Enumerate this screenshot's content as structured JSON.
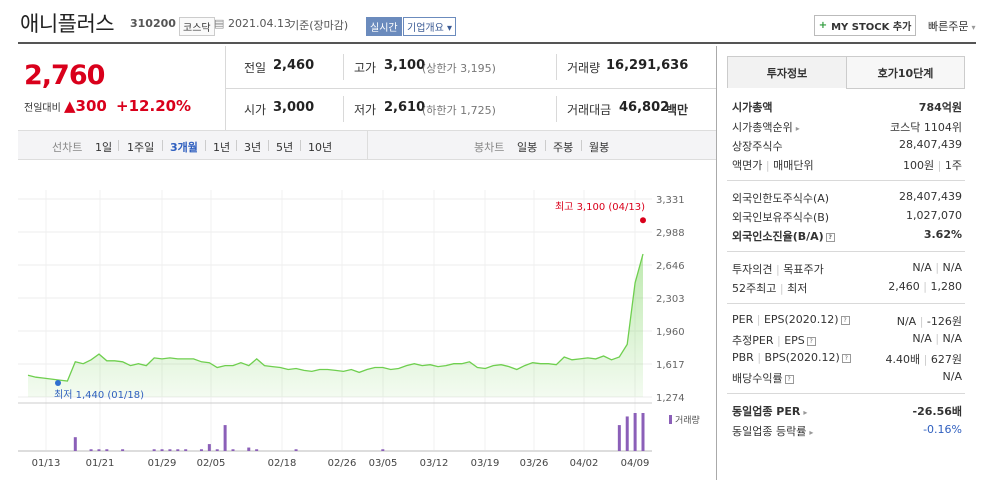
{
  "header": {
    "name": "애니플러스",
    "code": "310200",
    "market": "코스닥",
    "date": "2021.04.13",
    "basis": "기준(장마감)",
    "realtime": "실시간",
    "company": "기업개요",
    "mystock": "MY STOCK 추가",
    "quick": "빠른주문"
  },
  "price": {
    "current": "2,760",
    "change_label": "전일대비",
    "change": "300",
    "change_pct": "+12.20%"
  },
  "quote": {
    "prev_label": "전일",
    "prev": "2,460",
    "open_label": "시가",
    "open": "3,000",
    "high_label": "고가",
    "high": "3,100",
    "upper": "(상한가 3,195)",
    "low_label": "저가",
    "low": "2,610",
    "lower": "(하한가 1,725)",
    "volume_label": "거래량",
    "volume": "16,291,636",
    "amount_label": "거래대금",
    "amount": "46,802",
    "amount_unit": "백만"
  },
  "toolbar": {
    "line_chart": "선차트",
    "periods": [
      "1일",
      "1주일",
      "3개월",
      "1년",
      "3년",
      "5년",
      "10년"
    ],
    "active_period": "3개월",
    "candle_chart": "봉차트",
    "candles": [
      "일봉",
      "주봉",
      "월봉"
    ]
  },
  "chart_data": {
    "type": "line",
    "y_ticks": [
      "3,331",
      "2,988",
      "2,646",
      "2,303",
      "1,960",
      "1,617",
      "1,274"
    ],
    "ylim": [
      1274,
      3331
    ],
    "x_ticks": [
      "01/13",
      "01/21",
      "01/29",
      "02/05",
      "02/18",
      "02/26",
      "03/05",
      "03/12",
      "03/19",
      "03/26",
      "04/02",
      "04/09"
    ],
    "high_label": "최고 3,100 (04/13)",
    "low_label": "최저 1,440 (01/18)",
    "volume_legend": "거래량",
    "series": [
      {
        "values": [
          1500,
          1480,
          1470,
          1460,
          1450,
          1440,
          1640,
          1620,
          1660,
          1720,
          1650,
          1650,
          1640,
          1600,
          1620,
          1600,
          1680,
          1670,
          1680,
          1670,
          1670,
          1670,
          1640,
          1630,
          1580,
          1600,
          1600,
          1630,
          1600,
          1670,
          1600,
          1590,
          1580,
          1560,
          1570,
          1550,
          1540,
          1560,
          1560,
          1550,
          1540,
          1560,
          1530,
          1560,
          1580,
          1580,
          1560,
          1570,
          1600,
          1620,
          1600,
          1610,
          1590,
          1600,
          1620,
          1620,
          1640,
          1580,
          1570,
          1600,
          1610,
          1590,
          1560,
          1600,
          1630,
          1620,
          1620,
          1610,
          1690,
          1660,
          1670,
          1680,
          1670,
          1700,
          1660,
          1690,
          1820,
          2460,
          2760
        ]
      }
    ],
    "volume": [
      0,
      0,
      0,
      0,
      0,
      0,
      8,
      0,
      1,
      1,
      1,
      0,
      1,
      0,
      0,
      0,
      1,
      1,
      1,
      1,
      1,
      0,
      1,
      4,
      1,
      15,
      1,
      0,
      2,
      1,
      0,
      0,
      0,
      0,
      1,
      0,
      0,
      0,
      0,
      0,
      0,
      0,
      0,
      0,
      0,
      1,
      0,
      0,
      0,
      0,
      0,
      0,
      0,
      0,
      0,
      0,
      0,
      0,
      0,
      0,
      0,
      0,
      0,
      0,
      0,
      0,
      0,
      0,
      0,
      0,
      0,
      0,
      0,
      0,
      0,
      15,
      20,
      22,
      22
    ]
  },
  "side": {
    "tab_invest": "투자정보",
    "tab_ask": "호가10단계",
    "market_cap_label": "시가총액",
    "market_cap": "784억원",
    "cap_rank_label": "시가총액순위",
    "cap_rank": "코스닥 1104위",
    "shares_label": "상장주식수",
    "shares": "28,407,439",
    "par_label": "액면가",
    "trade_unit_label": "매매단위",
    "par": "100원",
    "trade_unit": "1주",
    "foreign_limit_label": "외국인한도주식수(A)",
    "foreign_limit": "28,407,439",
    "foreign_hold_label": "외국인보유주식수(B)",
    "foreign_hold": "1,027,070",
    "foreign_ratio_label": "외국인소진율(B/A)",
    "foreign_ratio": "3.62%",
    "opinion_label": "투자의견",
    "target_label": "목표주가",
    "opinion": "N/A",
    "target": "N/A",
    "w52_label": "52주최고",
    "w52_low_label": "최저",
    "w52_high": "2,460",
    "w52_low": "1,280",
    "per_label": "PER",
    "eps_label": "EPS(2020.12)",
    "per": "N/A",
    "eps": "-126원",
    "est_per_label": "추정PER",
    "est_eps_label": "EPS",
    "est_per": "N/A",
    "est_eps": "N/A",
    "pbr_label": "PBR",
    "bps_label": "BPS(2020.12)",
    "pbr": "4.40배",
    "bps": "627원",
    "div_label": "배당수익률",
    "div": "N/A",
    "sector_per_label": "동일업종 PER",
    "sector_per": "-26.56배",
    "sector_chg_label": "동일업종 등락률",
    "sector_chg": "-0.16%"
  },
  "colors": {
    "up": "#d9001b",
    "line": "#6fcf4f",
    "volume": "#8b5fb8",
    "active": "#2f5fbf"
  }
}
